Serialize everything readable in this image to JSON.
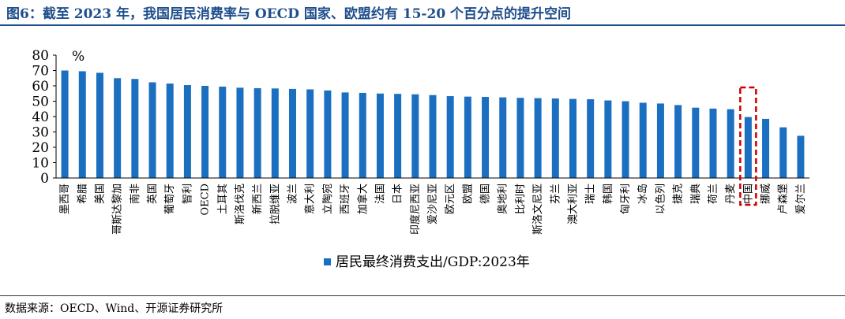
{
  "title": "图6：截至 2023 年，我国居民消费率与 OECD 国家、欧盟约有 15-20 个百分点的提升空间",
  "source": "数据来源：OECD、Wind、开源证券研究所",
  "colors": {
    "bar": "#1b6fc0",
    "highlight": "#cc0000",
    "title": "#1f4e8c"
  },
  "chart_data": {
    "type": "bar",
    "unit_label": "%",
    "ylim": [
      0,
      80
    ],
    "yticks": [
      0,
      10,
      20,
      30,
      40,
      50,
      60,
      70,
      80
    ],
    "grid": false,
    "legend_position": "bottom",
    "highlight_category": "中国",
    "series": [
      {
        "name": "居民最终消费支出/GDP:2023年",
        "categories": [
          "墨西哥",
          "希腊",
          "美国",
          "哥斯达黎加",
          "南非",
          "英国",
          "葡萄牙",
          "智利",
          "OECD",
          "土耳其",
          "斯洛伐克",
          "新西兰",
          "拉脱维亚",
          "波兰",
          "意大利",
          "立陶宛",
          "西班牙",
          "加拿大",
          "法国",
          "日本",
          "印度尼西亚",
          "爱沙尼亚",
          "欧元区",
          "欧盟",
          "德国",
          "奥地利",
          "比利时",
          "斯洛文尼亚",
          "芬兰",
          "澳大利亚",
          "瑞士",
          "韩国",
          "匈牙利",
          "冰岛",
          "以色列",
          "捷克",
          "瑞典",
          "荷兰",
          "丹麦",
          "中国",
          "挪威",
          "卢森堡",
          "爱尔兰"
        ],
        "values": [
          70,
          69.5,
          68.5,
          65,
          64.5,
          62.3,
          61.5,
          60.5,
          60,
          59.5,
          58.8,
          58.5,
          58.3,
          58,
          57.7,
          57,
          55.7,
          55.4,
          55,
          54.8,
          54.5,
          54,
          53.3,
          53,
          52.8,
          52.5,
          52.2,
          52,
          51.8,
          51.5,
          51.3,
          50.5,
          50,
          49,
          48.5,
          47.5,
          45.8,
          45.2,
          44.8,
          39.7,
          38.5,
          33,
          27.5
        ]
      }
    ]
  }
}
